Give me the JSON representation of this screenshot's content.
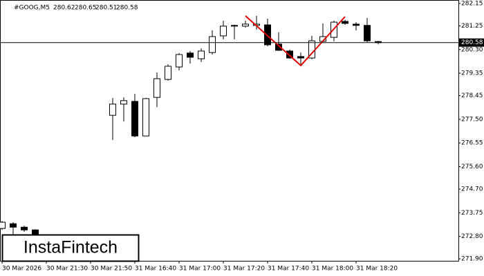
{
  "chart_data": {
    "type": "candlestick",
    "title": "#GOOG,M5",
    "x": [
      "30 Mar 2026",
      null,
      null,
      null,
      "30 Mar 21:30",
      null,
      null,
      null,
      "30 Mar 21:50",
      null,
      null,
      null,
      "31 Mar 16:40",
      null,
      null,
      null,
      "31 Mar 17:00",
      null,
      null,
      null,
      "31 Mar 17:20",
      null,
      null,
      null,
      "31 Mar 17:40",
      null,
      null,
      null,
      "31 Mar 18:00",
      null,
      null,
      null,
      "31 Mar 18:20",
      null,
      null
    ],
    "open": [
      273.12,
      273.31,
      273.17,
      273.06,
      null,
      null,
      null,
      null,
      null,
      null,
      277.66,
      278.11,
      278.22,
      276.83,
      278.38,
      279.1,
      279.6,
      280.16,
      279.93,
      280.18,
      280.85,
      281.24,
      281.24,
      281.27,
      281.29,
      280.52,
      280.24,
      280.02,
      279.96,
      280.63,
      280.79,
      281.43,
      281.32,
      281.27,
      280.62
    ],
    "high": [
      273.42,
      273.37,
      273.23,
      273.09,
      null,
      null,
      null,
      null,
      null,
      null,
      278.36,
      278.38,
      278.52,
      278.36,
      279.38,
      279.71,
      280.16,
      280.24,
      280.35,
      281.07,
      281.46,
      281.3,
      281.46,
      281.65,
      281.54,
      280.99,
      280.3,
      280.18,
      280.85,
      281.35,
      281.46,
      281.49,
      281.4,
      281.57,
      280.65
    ],
    "low": [
      273.06,
      272.87,
      272.98,
      272.82,
      null,
      null,
      null,
      null,
      null,
      null,
      276.67,
      277.41,
      276.78,
      276.83,
      277.99,
      279.05,
      279.46,
      279.74,
      279.8,
      280.1,
      280.71,
      280.71,
      281.18,
      281.1,
      280.43,
      280.24,
      279.93,
      279.71,
      279.91,
      280.57,
      280.63,
      281.29,
      281.07,
      280.6,
      280.51
    ],
    "close": [
      273.37,
      273.17,
      273.06,
      272.87,
      null,
      null,
      null,
      null,
      null,
      null,
      278.11,
      278.25,
      276.83,
      278.33,
      279.13,
      279.63,
      280.1,
      279.99,
      280.24,
      280.82,
      281.24,
      281.27,
      281.32,
      281.32,
      280.49,
      280.27,
      279.96,
      279.96,
      280.65,
      280.82,
      281.4,
      281.35,
      281.27,
      280.65,
      280.58
    ],
    "up_color": "#ffffff",
    "down_color": "#000000",
    "ylim": [
      271.82,
      282.15
    ],
    "yticks": [
      282.15,
      281.25,
      {
        "value": 280.3,
        "label": "280.30"
      },
      279.35,
      278.45,
      {
        "value": 277.5,
        "label": "277.50"
      },
      276.55,
      {
        "value": 275.6,
        "label": "275.60"
      },
      {
        "value": 274.7,
        "label": "274.70"
      },
      273.75,
      {
        "value": 272.8,
        "label": "272.80"
      },
      {
        "value": 271.9,
        "label": "271.90"
      }
    ],
    "pattern": {
      "color": "#e00000",
      "x": [
        22,
        27,
        31
      ],
      "values": [
        281.65,
        279.66,
        281.62
      ]
    },
    "watermark": "InstaFintech"
  }
}
